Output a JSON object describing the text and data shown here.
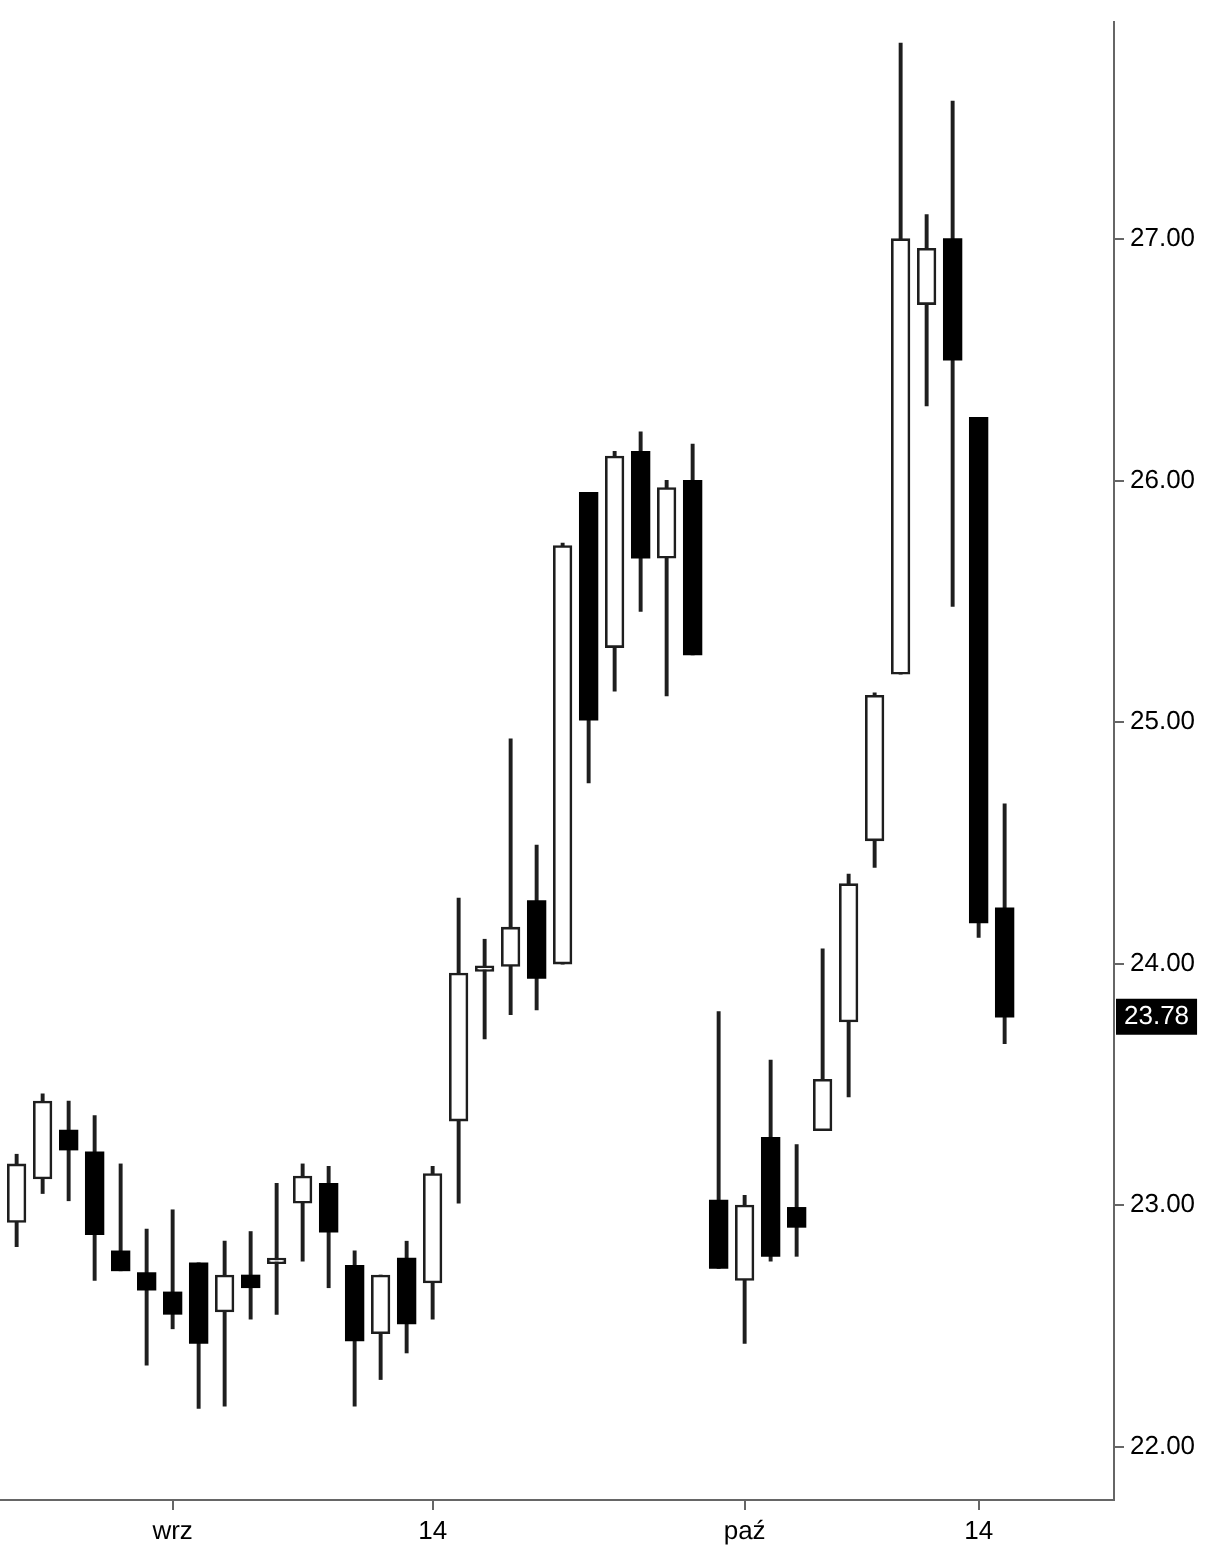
{
  "chart_data": {
    "type": "candlestick",
    "categories": [
      null,
      null,
      null,
      null,
      null,
      null,
      "wrz",
      null,
      null,
      null,
      null,
      null,
      null,
      null,
      null,
      null,
      "14",
      null,
      null,
      null,
      null,
      null,
      null,
      null,
      null,
      null,
      null,
      null,
      "paź",
      null,
      null,
      null,
      null,
      null,
      null,
      null,
      null,
      "14",
      null
    ],
    "ohlc": [
      [
        22.93,
        23.21,
        22.83,
        23.17
      ],
      [
        23.11,
        23.46,
        23.05,
        23.43
      ],
      [
        23.31,
        23.43,
        23.02,
        23.23
      ],
      [
        23.22,
        23.37,
        22.69,
        22.88
      ],
      [
        22.81,
        23.17,
        22.73,
        22.73
      ],
      [
        22.72,
        22.9,
        22.34,
        22.65
      ],
      [
        22.64,
        22.98,
        22.49,
        22.55
      ],
      [
        22.76,
        22.76,
        22.16,
        22.43
      ],
      [
        22.56,
        22.85,
        22.17,
        22.71
      ],
      [
        22.71,
        22.89,
        22.53,
        22.66
      ],
      [
        22.76,
        23.09,
        22.55,
        22.78
      ],
      [
        23.01,
        23.17,
        22.77,
        23.12
      ],
      [
        23.09,
        23.16,
        22.66,
        22.89
      ],
      [
        22.75,
        22.81,
        22.17,
        22.44
      ],
      [
        22.47,
        22.71,
        22.28,
        22.71
      ],
      [
        22.78,
        22.85,
        22.39,
        22.51
      ],
      [
        22.68,
        23.16,
        22.53,
        23.13
      ],
      [
        23.35,
        24.27,
        23.01,
        23.96
      ],
      [
        23.97,
        24.1,
        23.69,
        23.99
      ],
      [
        23.99,
        24.93,
        23.79,
        24.15
      ],
      [
        24.26,
        24.49,
        23.81,
        23.94
      ],
      [
        24.0,
        25.74,
        24.0,
        25.73
      ],
      [
        25.95,
        25.95,
        24.75,
        25.01
      ],
      [
        25.31,
        26.12,
        25.13,
        26.1
      ],
      [
        26.12,
        26.2,
        25.46,
        25.68
      ],
      [
        25.68,
        26.0,
        25.11,
        25.97
      ],
      [
        26.0,
        26.15,
        25.28,
        25.28
      ],
      [
        23.02,
        23.8,
        22.74,
        22.74
      ],
      [
        22.69,
        23.04,
        22.43,
        23.0
      ],
      [
        23.28,
        23.6,
        22.77,
        22.79
      ],
      [
        22.99,
        23.25,
        22.79,
        22.91
      ],
      [
        23.31,
        24.06,
        23.31,
        23.52
      ],
      [
        23.76,
        24.37,
        23.45,
        24.33
      ],
      [
        24.51,
        25.12,
        24.4,
        25.11
      ],
      [
        25.2,
        27.81,
        25.2,
        27.0
      ],
      [
        26.73,
        27.1,
        26.31,
        26.96
      ],
      [
        27.0,
        27.57,
        25.48,
        26.5
      ],
      [
        26.26,
        26.26,
        24.11,
        24.17
      ],
      [
        24.23,
        24.66,
        23.67,
        23.78
      ]
    ],
    "ylim": [
      21.78,
      27.9
    ],
    "yticks": [
      {
        "value": 22,
        "label": "22.00"
      },
      {
        "value": 23,
        "label": "23.00"
      },
      {
        "value": 24,
        "label": "24.00"
      },
      {
        "value": 25,
        "label": "25.00"
      },
      {
        "value": 26,
        "label": "26.00"
      },
      {
        "value": 27,
        "label": "27.00"
      }
    ],
    "annotations": [
      "23.78"
    ]
  }
}
